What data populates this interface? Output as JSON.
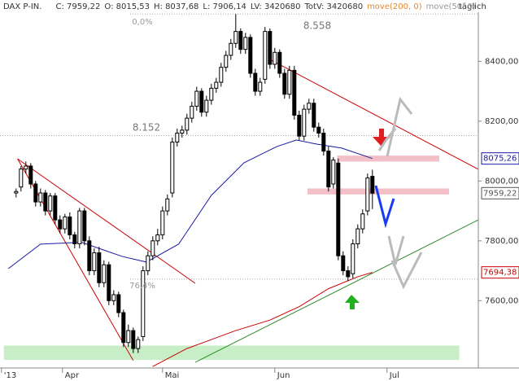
{
  "chart_data": {
    "type": "candlestick",
    "title": "DAX P-IN.",
    "header_stats": [
      "C: 7959,22",
      "O: 8015,53",
      "H: 8037,68",
      "L: 7906,14",
      "LV: 3420680",
      "TotV: 3420680"
    ],
    "period": "täglich",
    "xlim": [
      -3.3,
      94.7
    ],
    "ylim": [
      7375,
      8605
    ],
    "xticks": [
      {
        "value": -3,
        "label": "'13"
      },
      {
        "value": 9.5,
        "label": "Apr"
      },
      {
        "value": 30,
        "label": "Mai"
      },
      {
        "value": 53,
        "label": "Jun"
      },
      {
        "value": 76,
        "label": "Jul"
      }
    ],
    "yticks": [
      {
        "value": 8400,
        "label": "8400,00"
      },
      {
        "value": 8200,
        "label": "8200,00"
      },
      {
        "value": 8000,
        "label": "8000,00"
      },
      {
        "value": 7800,
        "label": "7800,00"
      },
      {
        "value": 7600,
        "label": "7600,00"
      }
    ],
    "open": [
      7960,
      7980,
      8040,
      8050,
      7990,
      7930,
      7960,
      7900,
      7950,
      7870,
      7840,
      7880,
      7820,
      7790,
      7900,
      7800,
      7700,
      7760,
      7660,
      7720,
      7600,
      7620,
      7560,
      7460,
      7500,
      7440,
      7480,
      7700,
      7750,
      7800,
      7820,
      7900,
      7960,
      8130,
      8160,
      8170,
      8210,
      8250,
      8300,
      8230,
      8270,
      8310,
      8330,
      8380,
      8420,
      8460,
      8500,
      8440,
      8480,
      8360,
      8300,
      8340,
      8500,
      8390,
      8430,
      8360,
      8290,
      8370,
      8220,
      8150,
      8240,
      8260,
      8180,
      8160,
      8100,
      7990,
      8060,
      7750,
      7700,
      7690,
      7790,
      7840,
      7900,
      8015.53
    ],
    "high": [
      7975,
      8050,
      8065,
      8060,
      8000,
      7975,
      7970,
      7960,
      7960,
      7885,
      7890,
      7895,
      7830,
      7910,
      7910,
      7815,
      7775,
      7780,
      7735,
      7730,
      7635,
      7630,
      7570,
      7520,
      7510,
      7480,
      7715,
      7765,
      7815,
      7840,
      7915,
      7955,
      8145,
      8175,
      8185,
      8225,
      8265,
      8315,
      8310,
      8285,
      8325,
      8345,
      8395,
      8435,
      8475,
      8558,
      8510,
      8495,
      8490,
      8375,
      8345,
      8515,
      8510,
      8445,
      8440,
      8375,
      8385,
      8385,
      8235,
      8255,
      8275,
      8275,
      8195,
      8175,
      8115,
      8080,
      8075,
      7765,
      7715,
      7805,
      7855,
      7905,
      8025,
      8037.68
    ],
    "low": [
      7945,
      7965,
      8025,
      7975,
      7915,
      7915,
      7885,
      7885,
      7855,
      7825,
      7825,
      7805,
      7775,
      7775,
      7785,
      7685,
      7685,
      7645,
      7645,
      7585,
      7585,
      7545,
      7445,
      7445,
      7425,
      7425,
      7465,
      7685,
      7735,
      7785,
      7805,
      7885,
      7945,
      8115,
      8145,
      8155,
      8195,
      8235,
      8215,
      8215,
      8255,
      8295,
      8315,
      8365,
      8405,
      8445,
      8425,
      8425,
      8345,
      8285,
      8285,
      8325,
      8375,
      8375,
      8345,
      8275,
      8275,
      8205,
      8135,
      8135,
      8225,
      8165,
      8145,
      8085,
      7965,
      7975,
      7735,
      7685,
      7665,
      7675,
      7775,
      7825,
      7885,
      7906.14
    ],
    "close": [
      7965,
      8040,
      8050,
      7990,
      7930,
      7960,
      7900,
      7950,
      7870,
      7840,
      7880,
      7820,
      7790,
      7900,
      7800,
      7700,
      7760,
      7660,
      7720,
      7600,
      7620,
      7560,
      7460,
      7500,
      7440,
      7470,
      7700,
      7750,
      7800,
      7820,
      7900,
      7940,
      8130,
      8160,
      8170,
      8210,
      8250,
      8300,
      8230,
      8270,
      8310,
      8330,
      8380,
      8420,
      8460,
      8500,
      8440,
      8480,
      8360,
      8300,
      8330,
      8500,
      8390,
      8430,
      8360,
      8290,
      8370,
      8220,
      8150,
      8240,
      8260,
      8180,
      8160,
      8100,
      7980,
      8070,
      7750,
      7700,
      7680,
      7790,
      7840,
      7890,
      8010,
      7959.22
    ],
    "series": [
      {
        "name": "move(200, 0)",
        "color": "#cc0000",
        "x": [
          28,
          35,
          45,
          52,
          58,
          64,
          70,
          73
        ],
        "values": [
          7380,
          7440,
          7500,
          7535,
          7580,
          7640,
          7680,
          7694.38
        ]
      },
      {
        "name": "move(50, 0)",
        "color": "#1a1aa0",
        "x": [
          -1.6,
          5,
          13.4,
          21.7,
          26.7,
          33.3,
          40,
          46.7,
          53.4,
          57.4,
          61.7,
          66.7,
          73
        ],
        "values": [
          7707,
          7789,
          7795,
          7748,
          7729,
          7789,
          7952,
          8061,
          8115,
          8137,
          8123,
          8110,
          8075.26
        ]
      }
    ],
    "price_labels": [
      {
        "value": 8075.26,
        "label": "8075,26",
        "color": "#1a1aa0"
      },
      {
        "value": 7959.22,
        "label": "7959,22",
        "color": "#555555"
      },
      {
        "value": 7694.38,
        "label": "7694,38",
        "color": "#cc0000"
      }
    ],
    "trendlines": [
      {
        "color": "#cc0000",
        "x": [
          0.3,
          24
        ],
        "values": [
          8074,
          7400
        ]
      },
      {
        "color": "#cc0000",
        "x": [
          0.3,
          36.7
        ],
        "values": [
          8074,
          7658
        ]
      },
      {
        "color": "#cc0000",
        "x": [
          51.7,
          94.7
        ],
        "values": [
          8409,
          8039
        ]
      },
      {
        "color": "#2e8b2e",
        "x": [
          36.7,
          94.7
        ],
        "values": [
          7394,
          7870
        ]
      }
    ],
    "zones": [
      {
        "color": "#f4c0c8",
        "x": [
          65.8,
          86.7
        ],
        "values": [
          8085,
          8065
        ]
      },
      {
        "color": "#f4c0c8",
        "x": [
          59.7,
          88.7
        ],
        "values": [
          7975,
          7955
        ]
      },
      {
        "color": "#c8eec8",
        "x": [
          -2.5,
          90.8
        ],
        "values": [
          7450,
          7402
        ]
      }
    ],
    "levels": [
      8558,
      8152,
      7672
    ],
    "annotations": [
      "0,0%",
      "8.558",
      "8.152",
      "76,4%"
    ]
  }
}
